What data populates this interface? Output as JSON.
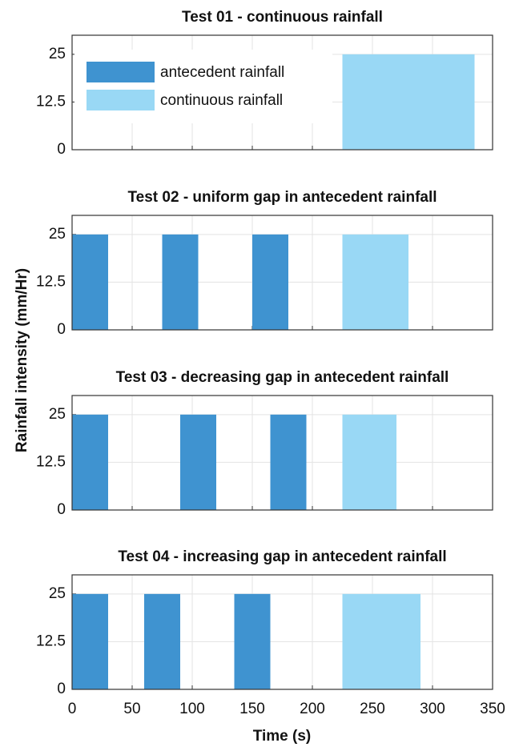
{
  "figure": {
    "ylabel": "Rainfall intensity (mm/Hr)",
    "xlabel": "Time (s)"
  },
  "chart_data": [
    {
      "type": "bar",
      "title": "Test 01 - continuous rainfall",
      "legend": "northwest",
      "xlim": [
        0,
        350
      ],
      "xticks": [
        0,
        50,
        100,
        150,
        200,
        250,
        300,
        350
      ],
      "ylim": [
        0,
        30
      ],
      "yticks": [
        0,
        12.5,
        25
      ],
      "grid": true,
      "series": [
        {
          "name": "antecedent rainfall",
          "color": "#3f93d0",
          "x": [],
          "values": []
        },
        {
          "name": "continuous rainfall",
          "color": "#99d8f5",
          "x": [
            [
              225,
              335
            ]
          ],
          "values": [
            25
          ]
        }
      ]
    },
    {
      "type": "bar",
      "title": "Test 02  - uniform gap in antecedent rainfall",
      "xlim": [
        0,
        350
      ],
      "xticks": [
        0,
        50,
        100,
        150,
        200,
        250,
        300,
        350
      ],
      "ylim": [
        0,
        30
      ],
      "yticks": [
        0,
        12.5,
        25
      ],
      "grid": true,
      "series": [
        {
          "color": "#3f93d0",
          "x": [
            [
              0,
              30
            ],
            [
              75,
              105
            ],
            [
              150,
              180
            ]
          ],
          "values": [
            25,
            25,
            25
          ]
        },
        {
          "color": "#99d8f5",
          "x": [
            [
              225,
              280
            ]
          ],
          "values": [
            25
          ]
        }
      ]
    },
    {
      "type": "bar",
      "title": "Test 03  - decreasing gap in antecedent rainfall",
      "xlim": [
        0,
        350
      ],
      "xticks": [
        0,
        50,
        100,
        150,
        200,
        250,
        300,
        350
      ],
      "ylim": [
        0,
        30
      ],
      "yticks": [
        0,
        12.5,
        25
      ],
      "grid": true,
      "series": [
        {
          "color": "#3f93d0",
          "x": [
            [
              0,
              30
            ],
            [
              90,
              120
            ],
            [
              165,
              195
            ]
          ],
          "values": [
            25,
            25,
            25
          ]
        },
        {
          "color": "#99d8f5",
          "x": [
            [
              225,
              270
            ]
          ],
          "values": [
            25
          ]
        }
      ]
    },
    {
      "type": "bar",
      "title": "Test 04  - increasing gap in antecedent rainfall",
      "xtick_labels": true,
      "xlim": [
        0,
        350
      ],
      "xticks": [
        0,
        50,
        100,
        150,
        200,
        250,
        300,
        350
      ],
      "ylim": [
        0,
        30
      ],
      "yticks": [
        0,
        12.5,
        25
      ],
      "grid": true,
      "series": [
        {
          "color": "#3f93d0",
          "x": [
            [
              0,
              30
            ],
            [
              60,
              90
            ],
            [
              135,
              165
            ]
          ],
          "values": [
            25,
            25,
            25
          ]
        },
        {
          "color": "#99d8f5",
          "x": [
            [
              225,
              290
            ]
          ],
          "values": [
            25
          ]
        }
      ]
    }
  ]
}
